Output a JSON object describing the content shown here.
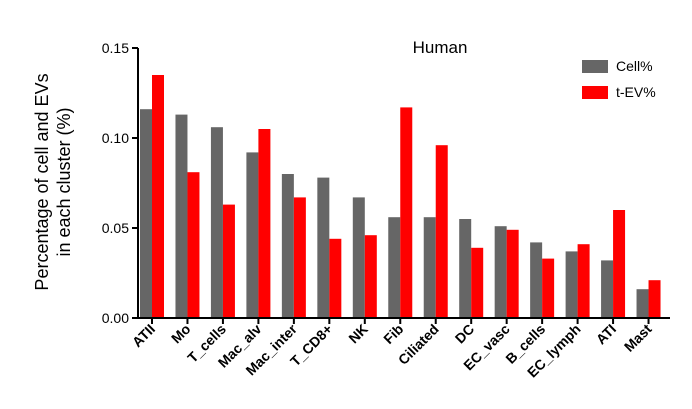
{
  "chart_data": {
    "type": "bar",
    "title": "Human",
    "ylabel_lines": [
      "Percentage of cell and EVs",
      "in each cluster (%)"
    ],
    "xlabel": "",
    "ylim": [
      0,
      0.15
    ],
    "yticks": [
      "0.00",
      "0.05",
      "0.10",
      "0.15"
    ],
    "categories": [
      "ATII",
      "Mo",
      "T_cells",
      "Mac_alv",
      "Mac_inter",
      "T_CD8+",
      "NK",
      "Fib",
      "Ciliated",
      "DC",
      "EC_vasc",
      "B_cells",
      "EC_lymph",
      "ATI",
      "Mast"
    ],
    "series": [
      {
        "name": "Cell%",
        "color": "#666666",
        "values": [
          0.116,
          0.113,
          0.106,
          0.092,
          0.08,
          0.078,
          0.067,
          0.056,
          0.056,
          0.055,
          0.051,
          0.042,
          0.037,
          0.032,
          0.016
        ]
      },
      {
        "name": "t-EV%",
        "color": "#ff0000",
        "values": [
          0.135,
          0.081,
          0.063,
          0.105,
          0.067,
          0.044,
          0.046,
          0.117,
          0.096,
          0.039,
          0.049,
          0.033,
          0.041,
          0.06,
          0.021
        ]
      }
    ],
    "legend_position": "top-right",
    "grid": false
  }
}
